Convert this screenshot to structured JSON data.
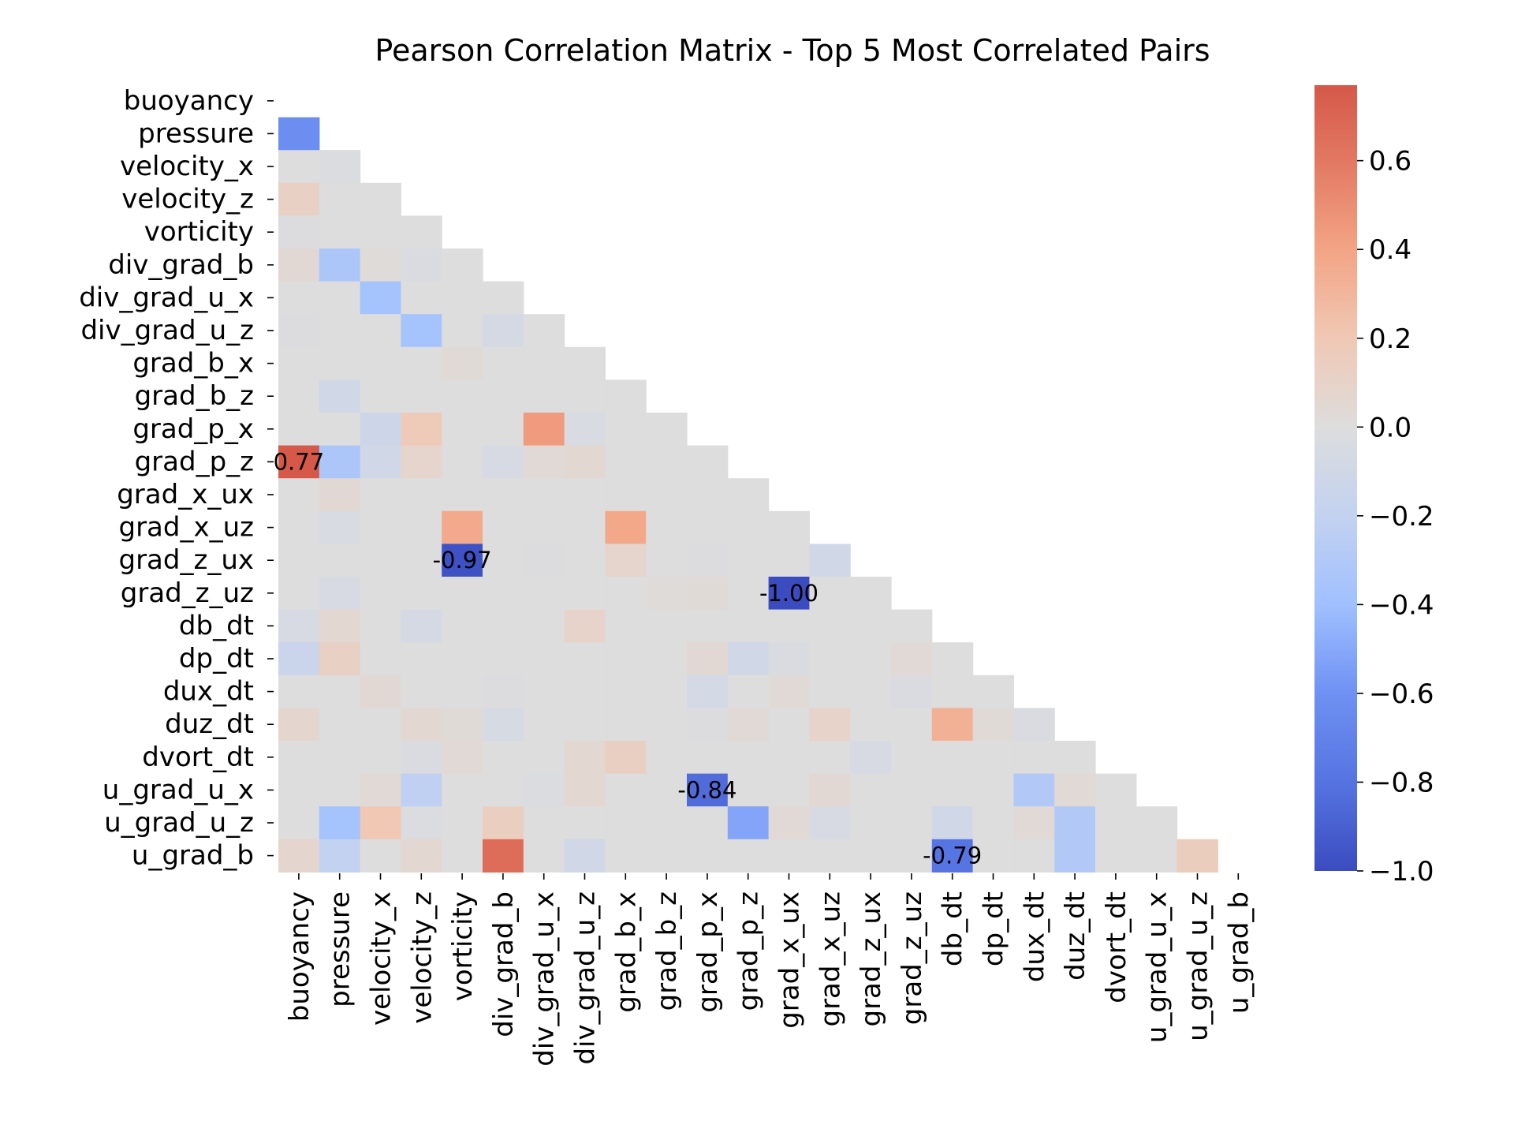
{
  "chart_data": {
    "type": "heatmap",
    "title": "Pearson Correlation Matrix - Top 5 Most Correlated Pairs",
    "variables": [
      "buoyancy",
      "pressure",
      "velocity_x",
      "velocity_z",
      "vorticity",
      "div_grad_b",
      "div_grad_u_x",
      "div_grad_u_z",
      "grad_b_x",
      "grad_b_z",
      "grad_p_x",
      "grad_p_z",
      "grad_x_ux",
      "grad_x_uz",
      "grad_z_ux",
      "grad_z_uz",
      "db_dt",
      "dp_dt",
      "dux_dt",
      "duz_dt",
      "dvort_dt",
      "u_grad_u_x",
      "u_grad_u_z",
      "u_grad_b"
    ],
    "mask": "upper-triangle-including-diagonal",
    "colormap": "coolwarm",
    "vmin": -1.0,
    "vmax": 0.77,
    "colorbar_ticks": [
      "0.6",
      "0.4",
      "0.2",
      "0.0",
      "−0.2",
      "−0.4",
      "−0.6",
      "−0.8",
      "−1.0"
    ],
    "colorbar_tick_values": [
      0.6,
      0.4,
      0.2,
      0.0,
      -0.2,
      -0.4,
      -0.6,
      -0.8,
      -1.0
    ],
    "annotations": [
      {
        "row": "grad_p_z",
        "col": "buoyancy",
        "text": "0.77"
      },
      {
        "row": "grad_z_ux",
        "col": "vorticity",
        "text": "-0.97"
      },
      {
        "row": "grad_z_uz",
        "col": "grad_x_ux",
        "text": "-1.00"
      },
      {
        "row": "u_grad_u_x",
        "col": "grad_p_x",
        "text": "-0.84"
      },
      {
        "row": "u_grad_b",
        "col": "db_dt",
        "text": "-0.79"
      }
    ],
    "values": [
      [],
      [
        -0.62
      ],
      [
        0.0,
        -0.02
      ],
      [
        0.12,
        0.0,
        0.0
      ],
      [
        -0.01,
        0.0,
        0.0,
        0.0
      ],
      [
        0.05,
        -0.33,
        0.02,
        -0.03,
        0.0
      ],
      [
        0.0,
        0.0,
        -0.37,
        0.0,
        0.0,
        0.0
      ],
      [
        -0.01,
        0.0,
        0.0,
        -0.37,
        0.0,
        -0.07,
        0.0
      ],
      [
        0.0,
        0.0,
        0.0,
        0.0,
        0.03,
        0.0,
        0.0,
        0.0
      ],
      [
        0.0,
        -0.1,
        0.0,
        0.0,
        0.0,
        0.0,
        0.0,
        0.0,
        0.0
      ],
      [
        0.0,
        0.0,
        -0.12,
        0.18,
        0.0,
        0.0,
        0.44,
        -0.04,
        0.0,
        0.0
      ],
      [
        0.77,
        -0.33,
        -0.1,
        0.08,
        0.0,
        -0.05,
        0.04,
        0.06,
        0.0,
        0.0,
        0.0
      ],
      [
        0.0,
        0.05,
        0.0,
        0.0,
        0.0,
        0.0,
        0.0,
        0.0,
        0.0,
        0.0,
        0.0,
        0.0
      ],
      [
        0.0,
        -0.04,
        0.0,
        0.0,
        0.37,
        0.0,
        0.0,
        0.0,
        0.38,
        0.0,
        0.0,
        0.0,
        0.0
      ],
      [
        0.0,
        0.0,
        0.0,
        0.0,
        -0.97,
        0.0,
        -0.01,
        0.0,
        0.08,
        0.0,
        -0.01,
        0.0,
        0.0,
        -0.1
      ],
      [
        0.0,
        -0.05,
        0.0,
        0.0,
        0.0,
        0.0,
        0.0,
        0.0,
        0.0,
        0.02,
        0.03,
        0.0,
        -1.0,
        0.0,
        0.0
      ],
      [
        -0.05,
        0.06,
        0.0,
        -0.07,
        0.0,
        0.0,
        0.0,
        0.1,
        0.0,
        0.0,
        0.0,
        0.0,
        0.0,
        0.0,
        0.0,
        0.0
      ],
      [
        -0.15,
        0.12,
        0.0,
        0.0,
        0.0,
        0.0,
        0.0,
        0.0,
        0.0,
        0.0,
        0.05,
        -0.1,
        -0.03,
        0.0,
        0.0,
        0.04,
        0.0
      ],
      [
        0.0,
        0.0,
        0.05,
        0.0,
        0.0,
        -0.01,
        0.0,
        0.0,
        0.0,
        0.0,
        -0.08,
        0.0,
        0.04,
        0.0,
        0.0,
        -0.03,
        0.0,
        0.0
      ],
      [
        0.07,
        0.0,
        0.0,
        0.06,
        0.03,
        -0.06,
        0.0,
        0.0,
        0.0,
        0.0,
        -0.01,
        0.04,
        0.0,
        0.1,
        0.0,
        0.0,
        0.33,
        0.03,
        -0.03
      ],
      [
        0.0,
        0.0,
        0.0,
        -0.03,
        0.04,
        0.0,
        0.0,
        0.06,
        0.13,
        0.0,
        0.0,
        0.0,
        0.0,
        0.0,
        -0.05,
        0.0,
        0.0,
        0.0,
        0.0,
        0.0
      ],
      [
        0.0,
        0.0,
        0.04,
        -0.22,
        0.0,
        0.0,
        -0.02,
        0.06,
        0.0,
        0.0,
        -0.84,
        0.0,
        0.0,
        0.05,
        0.0,
        0.0,
        0.0,
        0.0,
        -0.3,
        0.04,
        0.0
      ],
      [
        0.0,
        -0.37,
        0.2,
        -0.02,
        0.0,
        0.14,
        0.0,
        0.0,
        0.0,
        0.0,
        0.0,
        -0.52,
        0.04,
        -0.05,
        0.0,
        0.0,
        -0.1,
        0.0,
        0.04,
        -0.3,
        0.0,
        0.0
      ],
      [
        0.07,
        -0.2,
        0.0,
        0.06,
        0.0,
        0.66,
        0.0,
        -0.1,
        0.0,
        0.0,
        0.0,
        0.0,
        0.0,
        0.0,
        0.0,
        0.0,
        -0.79,
        0.0,
        0.0,
        -0.3,
        0.0,
        0.0,
        0.15
      ]
    ]
  }
}
